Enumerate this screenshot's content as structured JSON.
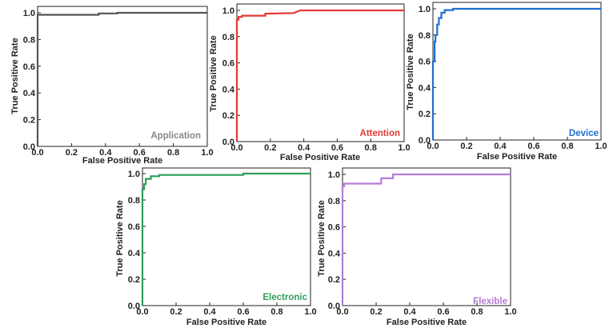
{
  "chart_data": [
    {
      "type": "line",
      "name": "Application",
      "legend": "Application",
      "color": "#555555",
      "xlabel": "False Positive Rate",
      "ylabel": "True Positive Rate",
      "xlim": [
        0,
        1
      ],
      "ylim": [
        0,
        1
      ],
      "xticks": [
        "0.0",
        "0.2",
        "0.4",
        "0.6",
        "0.8",
        "1.0"
      ],
      "yticks": [
        "0.0",
        "0.2",
        "0.4",
        "0.6",
        "0.8",
        "1.0"
      ],
      "x": [
        0,
        0,
        0.36,
        0.36,
        0.47,
        0.47,
        1.0
      ],
      "y": [
        0,
        0.985,
        0.985,
        0.995,
        0.995,
        1.0,
        1.0
      ]
    },
    {
      "type": "line",
      "name": "Attention",
      "legend": "Attention",
      "color": "#e53935",
      "xlabel": "False Positive Rate",
      "ylabel": "True Positive Rate",
      "xlim": [
        0,
        1
      ],
      "ylim": [
        0,
        1
      ],
      "xticks": [
        "0.0",
        "0.2",
        "0.4",
        "0.6",
        "0.8",
        "1.0"
      ],
      "yticks": [
        "0.0",
        "0.2",
        "0.4",
        "0.6",
        "0.8",
        "1.0"
      ],
      "x": [
        0,
        0,
        0.01,
        0.01,
        0.03,
        0.03,
        0.17,
        0.17,
        0.34,
        0.36,
        0.38,
        1.0
      ],
      "y": [
        0,
        0.93,
        0.93,
        0.95,
        0.95,
        0.96,
        0.96,
        0.975,
        0.98,
        0.99,
        1.0,
        1.0
      ]
    },
    {
      "type": "line",
      "name": "Device",
      "legend": "Device",
      "color": "#1f6fd1",
      "xlabel": "False Positive Rate",
      "ylabel": "True Positive Rate",
      "xlim": [
        0,
        1
      ],
      "ylim": [
        0,
        1
      ],
      "xticks": [
        "0.0",
        "0.2",
        "0.4",
        "0.6",
        "0.8",
        "1.0"
      ],
      "yticks": [
        "0.0",
        "0.2",
        "0.4",
        "0.6",
        "0.8",
        "1.0"
      ],
      "x": [
        0,
        0,
        0.01,
        0.01,
        0.015,
        0.015,
        0.025,
        0.025,
        0.035,
        0.035,
        0.05,
        0.05,
        0.07,
        0.07,
        0.12,
        0.12,
        1.0
      ],
      "y": [
        0,
        0.6,
        0.6,
        0.75,
        0.75,
        0.8,
        0.8,
        0.88,
        0.88,
        0.93,
        0.93,
        0.97,
        0.97,
        0.99,
        0.99,
        1.0,
        1.0
      ]
    },
    {
      "type": "line",
      "name": "Electronic",
      "legend": "Electronic",
      "color": "#2e9e5b",
      "xlabel": "False Positive Rate",
      "ylabel": "True Positive Rate",
      "xlim": [
        0,
        1
      ],
      "ylim": [
        0,
        1
      ],
      "xticks": [
        "0.0",
        "0.2",
        "0.4",
        "0.6",
        "0.8",
        "1.0"
      ],
      "yticks": [
        "0.0",
        "0.2",
        "0.4",
        "0.6",
        "0.8",
        "1.0"
      ],
      "x": [
        0,
        0,
        0.01,
        0.01,
        0.02,
        0.02,
        0.05,
        0.05,
        0.1,
        0.1,
        0.6,
        0.6,
        1.0
      ],
      "y": [
        0,
        0.88,
        0.88,
        0.92,
        0.92,
        0.96,
        0.96,
        0.98,
        0.98,
        0.99,
        0.99,
        1.0,
        1.0
      ]
    },
    {
      "type": "line",
      "name": "Flexible",
      "legend": "Flexible",
      "color": "#b57bd6",
      "xlabel": "False Positive Rate",
      "ylabel": "True Positive Rate",
      "xlim": [
        0,
        1
      ],
      "ylim": [
        0,
        1
      ],
      "xticks": [
        "0.0",
        "0.2",
        "0.4",
        "0.6",
        "0.8",
        "1.0"
      ],
      "yticks": [
        "0.0",
        "0.2",
        "0.4",
        "0.6",
        "0.8",
        "1.0"
      ],
      "x": [
        0,
        0,
        0.01,
        0.01,
        0.23,
        0.23,
        0.3,
        0.3,
        1.0
      ],
      "y": [
        0,
        0.91,
        0.91,
        0.93,
        0.93,
        0.97,
        0.97,
        1.0,
        1.0
      ]
    }
  ]
}
